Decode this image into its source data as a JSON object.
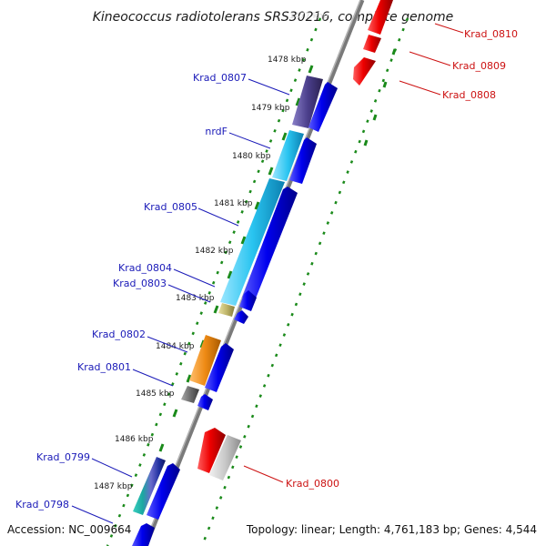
{
  "title": "Kineococcus radiotolerans SRS30216, complete genome",
  "footer": {
    "accession": "Accession: NC_009664",
    "summary": "Topology: linear; Length: 4,761,183 bp; Genes: 4,544"
  },
  "ticks": [
    "1478 kbp",
    "1479 kbp",
    "1480 kbp",
    "1481 kbp",
    "1482 kbp",
    "1483 kbp",
    "1484 kbp",
    "1485 kbp",
    "1486 kbp",
    "1487 kbp"
  ],
  "genes_left": [
    "Krad_0807",
    "nrdF",
    "Krad_0805",
    "Krad_0804",
    "Krad_0803",
    "Krad_0802",
    "Krad_0801",
    "Krad_0799",
    "Krad_0798"
  ],
  "genes_right": [
    "Krad_0810",
    "Krad_0809",
    "Krad_0808",
    "Krad_0800"
  ],
  "colors": {
    "forward_strand": "#0000ee",
    "reverse_strand": "#ee0000",
    "genome_line": "#7a7a7a",
    "dotted_track": "#1a8a1a",
    "left_label": "#1a1ab8",
    "right_label": "#cc1111",
    "feature_purple": "#4b3f8c",
    "feature_cyan": "#29c4f0",
    "feature_khaki": "#bfb56a",
    "feature_orange": "#ee8a14",
    "feature_gray": "#6e6e6e",
    "feature_silver": "#c8c8c8"
  }
}
